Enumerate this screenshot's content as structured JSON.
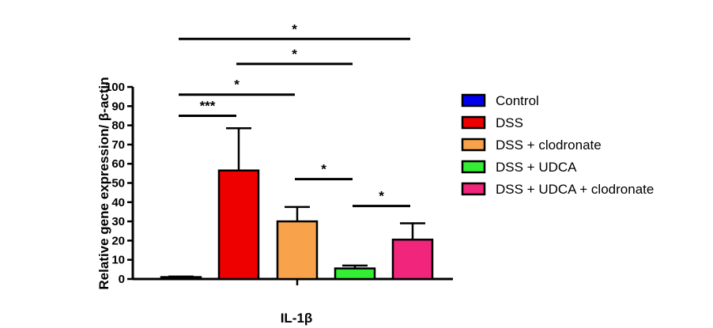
{
  "chart_data": {
    "type": "bar",
    "xlabel": "IL-1β",
    "ylabel": "Relative gene expression/ β-actin",
    "ylim": [
      0,
      100
    ],
    "yticks": [
      0,
      10,
      20,
      30,
      40,
      50,
      60,
      70,
      80,
      90,
      100
    ],
    "series": [
      {
        "name": "Control",
        "value": 1,
        "error": 0.3,
        "color": "#0000ee"
      },
      {
        "name": "DSS",
        "value": 56.5,
        "error": 22,
        "color": "#ee0000"
      },
      {
        "name": "DSS + clodronate",
        "value": 30,
        "error": 7.5,
        "color": "#f9a24c"
      },
      {
        "name": "DSS + UDCA",
        "value": 5.5,
        "error": 1.5,
        "color": "#33ee33"
      },
      {
        "name": "DSS + UDCA + clodronate",
        "value": 20.5,
        "error": 8.5,
        "color": "#f0257b"
      }
    ],
    "comparisons": [
      {
        "from": 0,
        "to": 1,
        "y": 85,
        "label": "***"
      },
      {
        "from": 0,
        "to": 2,
        "y": 96,
        "label": "*"
      },
      {
        "from": 1,
        "to": 3,
        "y": 112,
        "label": "*"
      },
      {
        "from": 0,
        "to": 4,
        "y": 125,
        "label": "*"
      },
      {
        "from": 2,
        "to": 3,
        "y": 52,
        "label": "*"
      },
      {
        "from": 3,
        "to": 4,
        "y": 38,
        "label": "*"
      }
    ],
    "legend_position": "right"
  }
}
